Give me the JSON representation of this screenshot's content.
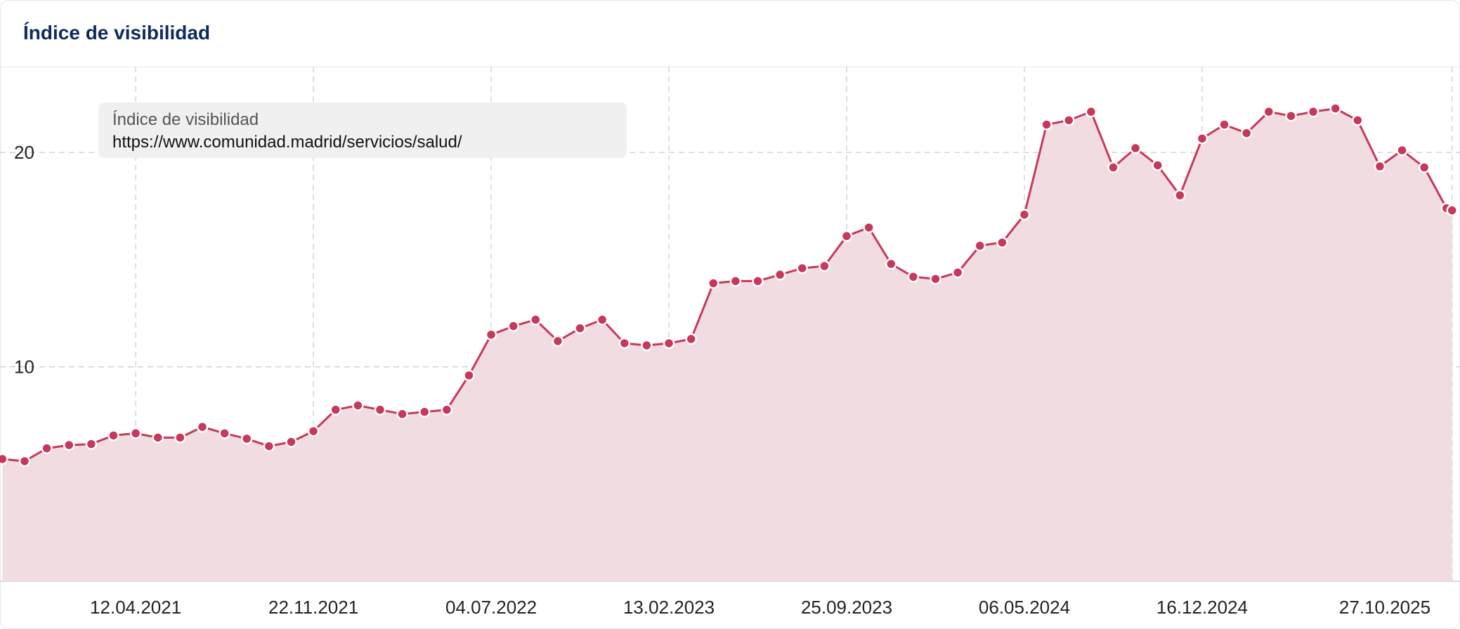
{
  "chart_data": {
    "type": "area",
    "title": "Índice de visibilidad",
    "legend_title": "Índice de visibilidad",
    "x": [
      "2020-10-26",
      "2020-11-23",
      "2020-12-21",
      "2021-01-18",
      "2021-02-15",
      "2021-03-15",
      "2021-04-12",
      "2021-05-10",
      "2021-06-07",
      "2021-07-05",
      "2021-08-02",
      "2021-08-30",
      "2021-09-27",
      "2021-10-25",
      "2021-11-22",
      "2021-12-20",
      "2022-01-17",
      "2022-02-14",
      "2022-03-14",
      "2022-04-11",
      "2022-05-09",
      "2022-06-06",
      "2022-07-04",
      "2022-08-01",
      "2022-08-29",
      "2022-09-26",
      "2022-10-24",
      "2022-11-21",
      "2022-12-19",
      "2023-01-16",
      "2023-02-13",
      "2023-03-13",
      "2023-04-10",
      "2023-05-08",
      "2023-06-05",
      "2023-07-03",
      "2023-07-31",
      "2023-08-28",
      "2023-09-25",
      "2023-10-23",
      "2023-11-20",
      "2023-12-18",
      "2024-01-15",
      "2024-02-12",
      "2024-03-11",
      "2024-04-08",
      "2024-05-06",
      "2024-06-03",
      "2024-07-01",
      "2024-07-29",
      "2024-08-26",
      "2024-09-23",
      "2024-10-21",
      "2024-11-18",
      "2024-12-16",
      "2025-01-13",
      "2025-02-10",
      "2025-03-10",
      "2025-04-07",
      "2025-05-05",
      "2025-06-02",
      "2025-06-30",
      "2025-07-28",
      "2025-08-25",
      "2025-09-22",
      "2025-10-20",
      "2025-10-27"
    ],
    "series": [
      {
        "name": "https://www.comunidad.madrid/servicios/salud/",
        "color": "#c8385a",
        "fill": "#f1dde1",
        "values": [
          5.7,
          5.6,
          6.2,
          6.35,
          6.4,
          6.8,
          6.9,
          6.7,
          6.7,
          7.2,
          6.9,
          6.65,
          6.3,
          6.5,
          7.0,
          8.0,
          8.2,
          8.0,
          7.8,
          7.9,
          8.0,
          9.6,
          11.5,
          11.9,
          12.2,
          11.2,
          11.8,
          12.2,
          11.1,
          11.0,
          11.1,
          11.3,
          13.9,
          14.0,
          14.0,
          14.3,
          14.6,
          14.7,
          16.1,
          16.5,
          14.8,
          14.2,
          14.1,
          14.4,
          15.65,
          15.8,
          17.1,
          21.3,
          21.5,
          21.9,
          19.3,
          20.2,
          19.4,
          18.0,
          20.65,
          21.3,
          20.9,
          21.9,
          21.7,
          21.9,
          22.05,
          21.5,
          19.35,
          20.1,
          19.3,
          17.4,
          17.3
        ]
      }
    ],
    "xlim": [
      "2020-10-23",
      "2025-11-06"
    ],
    "xticks": [
      {
        "value": "2021-04-12",
        "label": "12.04.2021"
      },
      {
        "value": "2021-11-22",
        "label": "22.11.2021"
      },
      {
        "value": "2022-07-04",
        "label": "04.07.2022"
      },
      {
        "value": "2023-02-13",
        "label": "13.02.2023"
      },
      {
        "value": "2023-09-25",
        "label": "25.09.2023"
      },
      {
        "value": "2024-05-06",
        "label": "06.05.2024"
      },
      {
        "value": "2024-12-16",
        "label": "16.12.2024"
      },
      {
        "value": "2025-10-27",
        "label": "27.10.2025"
      }
    ],
    "ylim": [
      0,
      24
    ],
    "yticks": [
      10,
      20
    ],
    "grid": true
  }
}
